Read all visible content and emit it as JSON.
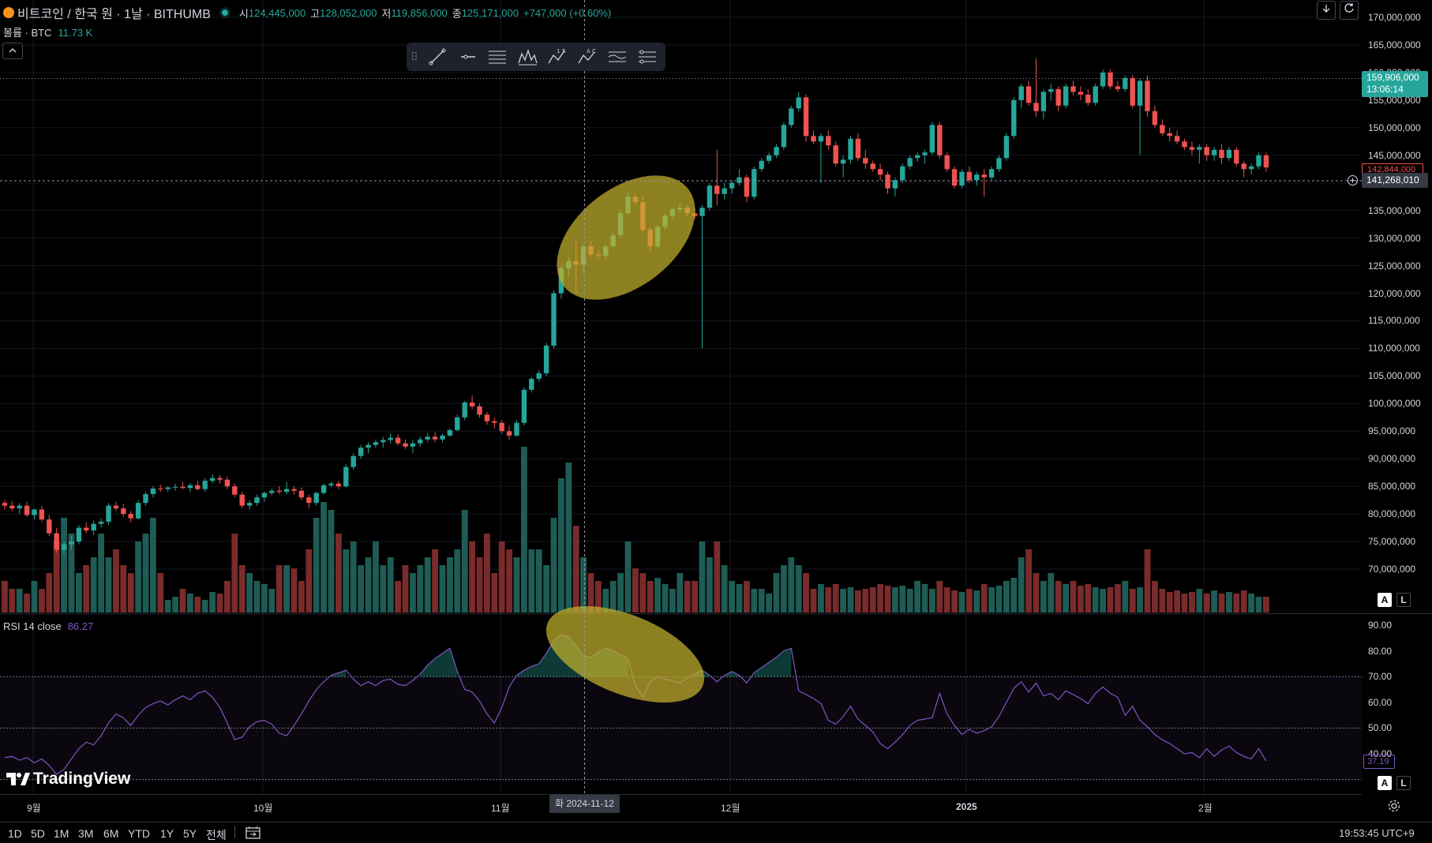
{
  "header": {
    "symbol": "비트코인 / 한국 원 · 1날 · BITHUMB",
    "open_label": "시",
    "open": "124,445,000",
    "high_label": "고",
    "high": "128,052,000",
    "low_label": "저",
    "low": "119,856,000",
    "close_label": "종",
    "close": "125,171,000",
    "change": "+747,000 (+0.60%)"
  },
  "volume_legend": {
    "label": "볼륨 · BTC",
    "value": "11.73 K"
  },
  "rsi_legend": {
    "label": "RSI 14 close",
    "value": "86.27"
  },
  "price_axis": {
    "ticks": [
      "170,000,000",
      "165,000,000",
      "160,000,000",
      "155,000,000",
      "150,000,000",
      "145,000,000",
      "140,000,000",
      "135,000,000",
      "130,000,000",
      "125,000,000",
      "120,000,000",
      "115,000,000",
      "110,000,000",
      "105,000,000",
      "100,000,000",
      "95,000,000",
      "90,000,000",
      "85,000,000",
      "80,000,000",
      "75,000,000",
      "70,000,000"
    ],
    "last_price": "159,906,000",
    "countdown": "13:06:14",
    "prev_close": "142,844,000",
    "crosshair_price": "141,268,010"
  },
  "rsi_axis": {
    "ticks": [
      "90.00",
      "80.00",
      "70.00",
      "60.00",
      "50.00",
      "40.00"
    ],
    "current": "37.19"
  },
  "x_axis": {
    "labels": [
      {
        "text": "9월",
        "bold": false
      },
      {
        "text": "10월",
        "bold": false
      },
      {
        "text": "11월",
        "bold": false
      },
      {
        "text": "12월",
        "bold": false
      },
      {
        "text": "2025",
        "bold": true
      },
      {
        "text": "2월",
        "bold": false
      }
    ],
    "crosshair_date": "화 2024-11-12"
  },
  "scale_buttons": {
    "auto": "A",
    "log": "L"
  },
  "branding": "TradingView",
  "bottom_bar": {
    "ranges": [
      "1D",
      "5D",
      "1M",
      "3M",
      "6M",
      "YTD",
      "1Y",
      "5Y",
      "전체"
    ],
    "time": "19:53:45 UTC+9"
  },
  "toolbar": {
    "tools": [
      "trend-line-icon",
      "horizontal-ray-icon",
      "fib-retracement-icon",
      "elliott-wave-icon",
      "abcd-pattern-icon",
      "xabcd-pattern-icon",
      "parallel-channel-icon",
      "settings-lines-icon"
    ]
  },
  "colors": {
    "up": "#26a69a",
    "down": "#ef5350",
    "rsi": "#7e57c2",
    "highlight": "#c4b12d"
  },
  "chart_data": {
    "type": "candlestick",
    "timeframe": "1D",
    "ylim": [
      67000000,
      172000000
    ],
    "y_scale": "log",
    "candles": [
      [
        82.0,
        82.5,
        80.8,
        81.5
      ],
      [
        81.5,
        82.3,
        80.5,
        81.0
      ],
      [
        81.0,
        82.0,
        80.0,
        81.5
      ],
      [
        81.5,
        82.2,
        79.5,
        79.8
      ],
      [
        79.8,
        81.0,
        79.0,
        80.8
      ],
      [
        80.8,
        81.5,
        78.5,
        79.0
      ],
      [
        79.0,
        79.8,
        76.0,
        76.5
      ],
      [
        76.5,
        77.5,
        73.0,
        73.5
      ],
      [
        73.5,
        75.0,
        72.8,
        74.5
      ],
      [
        74.5,
        76.0,
        73.5,
        75.0
      ],
      [
        75.0,
        78.0,
        74.5,
        77.5
      ],
      [
        77.5,
        78.5,
        76.5,
        77.0
      ],
      [
        77.0,
        78.8,
        76.2,
        78.2
      ],
      [
        78.2,
        79.2,
        77.6,
        78.6
      ],
      [
        78.6,
        82.0,
        78.0,
        81.5
      ],
      [
        81.5,
        82.2,
        80.5,
        81.0
      ],
      [
        81.0,
        81.8,
        79.5,
        80.0
      ],
      [
        80.0,
        80.5,
        78.5,
        79.2
      ],
      [
        79.2,
        82.5,
        79.0,
        82.0
      ],
      [
        82.0,
        84.0,
        81.5,
        83.6
      ],
      [
        83.6,
        85.0,
        83.0,
        84.6
      ],
      [
        84.6,
        85.3,
        84.0,
        84.5
      ],
      [
        84.5,
        85.0,
        84.0,
        84.8
      ],
      [
        84.8,
        85.5,
        84.2,
        84.9
      ],
      [
        84.9,
        85.8,
        84.5,
        84.7
      ],
      [
        84.7,
        85.6,
        84.0,
        85.2
      ],
      [
        85.2,
        86.0,
        84.3,
        84.5
      ],
      [
        84.5,
        86.5,
        84.0,
        86.0
      ],
      [
        86.0,
        87.2,
        85.5,
        86.5
      ],
      [
        86.5,
        87.0,
        85.5,
        86.2
      ],
      [
        86.2,
        86.8,
        84.5,
        85.0
      ],
      [
        85.0,
        85.5,
        83.0,
        83.5
      ],
      [
        83.5,
        84.0,
        81.0,
        81.5
      ],
      [
        81.5,
        82.5,
        80.8,
        82.0
      ],
      [
        82.0,
        83.5,
        81.5,
        83.0
      ],
      [
        83.0,
        84.0,
        82.2,
        83.8
      ],
      [
        83.8,
        84.6,
        83.4,
        84.2
      ],
      [
        84.2,
        85.0,
        83.6,
        84.0
      ],
      [
        84.0,
        85.8,
        83.5,
        84.5
      ],
      [
        84.5,
        85.0,
        83.5,
        84.2
      ],
      [
        84.2,
        84.8,
        82.5,
        83.0
      ],
      [
        83.0,
        83.5,
        81.0,
        82.0
      ],
      [
        82.0,
        84.0,
        81.5,
        83.8
      ],
      [
        83.8,
        85.5,
        83.5,
        85.2
      ],
      [
        85.2,
        85.8,
        84.8,
        85.5
      ],
      [
        85.5,
        86.0,
        84.5,
        85.0
      ],
      [
        85.0,
        89.0,
        84.8,
        88.5
      ],
      [
        88.5,
        91.0,
        88.0,
        90.5
      ],
      [
        90.5,
        92.5,
        90.0,
        92.0
      ],
      [
        92.0,
        93.0,
        91.0,
        92.5
      ],
      [
        92.5,
        93.5,
        92.0,
        93.0
      ],
      [
        93.0,
        94.0,
        92.0,
        93.4
      ],
      [
        93.4,
        94.6,
        92.8,
        93.8
      ],
      [
        93.8,
        94.4,
        92.4,
        92.8
      ],
      [
        92.8,
        93.5,
        91.8,
        92.2
      ],
      [
        92.2,
        93.4,
        91.0,
        92.8
      ],
      [
        92.8,
        94.0,
        92.2,
        93.5
      ],
      [
        93.5,
        94.6,
        93.0,
        94.0
      ],
      [
        94.0,
        94.8,
        93.0,
        93.5
      ],
      [
        93.5,
        94.5,
        93.0,
        94.2
      ],
      [
        94.2,
        95.5,
        94.0,
        95.2
      ],
      [
        95.2,
        98.0,
        95.0,
        97.5
      ],
      [
        97.5,
        100.5,
        97.0,
        100.2
      ],
      [
        100.2,
        101.5,
        99.0,
        99.5
      ],
      [
        99.5,
        100.0,
        97.5,
        98.0
      ],
      [
        98.0,
        98.5,
        96.2,
        96.8
      ],
      [
        96.8,
        97.5,
        95.5,
        96.5
      ],
      [
        96.5,
        97.0,
        94.5,
        95.0
      ],
      [
        95.0,
        96.0,
        93.5,
        94.2
      ],
      [
        94.2,
        97.0,
        94.0,
        96.5
      ],
      [
        96.5,
        103.0,
        96.0,
        102.5
      ],
      [
        102.5,
        104.8,
        102.0,
        104.5
      ],
      [
        104.5,
        106.0,
        104.0,
        105.5
      ],
      [
        105.5,
        111.0,
        105.0,
        110.5
      ],
      [
        110.5,
        120.5,
        110.0,
        120.0
      ],
      [
        120.0,
        125.0,
        119.0,
        124.5
      ],
      [
        124.5,
        126.5,
        123.0,
        125.8
      ],
      [
        125.8,
        129.5,
        119.9,
        125.2
      ],
      [
        125.2,
        129.0,
        123.5,
        128.5
      ],
      [
        128.5,
        129.5,
        126.5,
        127.0
      ],
      [
        127.0,
        127.8,
        126.0,
        126.8
      ],
      [
        126.8,
        129.0,
        126.2,
        128.5
      ],
      [
        128.5,
        131.0,
        128.0,
        130.5
      ],
      [
        130.5,
        135.0,
        130.0,
        134.5
      ],
      [
        134.5,
        138.5,
        134.0,
        137.5
      ],
      [
        137.5,
        138.0,
        136.0,
        136.5
      ],
      [
        136.5,
        137.5,
        131.0,
        131.5
      ],
      [
        131.5,
        132.0,
        127.5,
        128.5
      ],
      [
        128.5,
        132.5,
        128.0,
        132.0
      ],
      [
        132.0,
        134.5,
        131.5,
        134.0
      ],
      [
        134.0,
        135.5,
        133.5,
        135.2
      ],
      [
        135.2,
        136.5,
        134.5,
        135.5
      ],
      [
        135.5,
        136.0,
        134.0,
        134.5
      ],
      [
        134.5,
        135.5,
        133.5,
        134.0
      ],
      [
        134.0,
        136.0,
        110.0,
        135.5
      ],
      [
        135.5,
        140.0,
        135.0,
        139.5
      ],
      [
        139.5,
        146.0,
        136.0,
        138.0
      ],
      [
        138.0,
        140.0,
        137.0,
        139.0
      ],
      [
        139.0,
        140.5,
        138.0,
        140.0
      ],
      [
        140.0,
        142.5,
        139.5,
        141.0
      ],
      [
        141.0,
        141.5,
        136.5,
        137.5
      ],
      [
        137.5,
        143.0,
        137.0,
        142.5
      ],
      [
        142.5,
        144.5,
        142.0,
        144.0
      ],
      [
        144.0,
        145.5,
        143.5,
        145.0
      ],
      [
        145.0,
        147.0,
        144.5,
        146.5
      ],
      [
        146.5,
        151.0,
        146.0,
        150.5
      ],
      [
        150.5,
        154.0,
        150.0,
        153.5
      ],
      [
        153.5,
        156.5,
        153.0,
        155.5
      ],
      [
        155.5,
        156.0,
        147.5,
        148.5
      ],
      [
        148.5,
        149.5,
        147.0,
        147.5
      ],
      [
        147.5,
        149.0,
        140.0,
        148.5
      ],
      [
        148.5,
        149.5,
        146.0,
        146.8
      ],
      [
        146.8,
        147.5,
        143.0,
        143.5
      ],
      [
        143.5,
        145.0,
        141.0,
        144.2
      ],
      [
        144.2,
        148.5,
        143.5,
        148.0
      ],
      [
        148.0,
        149.0,
        144.0,
        144.5
      ],
      [
        144.5,
        146.0,
        142.5,
        143.5
      ],
      [
        143.5,
        144.0,
        142.0,
        142.5
      ],
      [
        142.5,
        143.5,
        140.5,
        141.5
      ],
      [
        141.5,
        142.0,
        138.0,
        139.0
      ],
      [
        139.0,
        141.0,
        137.5,
        140.5
      ],
      [
        140.5,
        143.5,
        140.0,
        143.0
      ],
      [
        143.0,
        145.0,
        142.5,
        144.5
      ],
      [
        144.5,
        145.5,
        143.8,
        145.0
      ],
      [
        145.0,
        146.0,
        143.5,
        145.5
      ],
      [
        145.5,
        151.0,
        145.0,
        150.5
      ],
      [
        150.5,
        151.0,
        144.5,
        145.0
      ],
      [
        145.0,
        145.5,
        142.0,
        142.5
      ],
      [
        142.5,
        143.0,
        139.0,
        139.5
      ],
      [
        139.5,
        142.5,
        139.0,
        142.0
      ],
      [
        142.0,
        143.0,
        140.0,
        140.5
      ],
      [
        140.5,
        142.0,
        139.5,
        141.5
      ],
      [
        141.5,
        142.5,
        137.5,
        141.0
      ],
      [
        141.0,
        143.0,
        140.5,
        142.5
      ],
      [
        142.5,
        145.0,
        142.0,
        144.5
      ],
      [
        144.5,
        149.0,
        144.0,
        148.5
      ],
      [
        148.5,
        155.5,
        148.0,
        155.0
      ],
      [
        155.0,
        158.0,
        153.5,
        157.5
      ],
      [
        157.5,
        158.5,
        154.0,
        154.5
      ],
      [
        154.5,
        162.5,
        152.0,
        153.0
      ],
      [
        153.0,
        157.0,
        151.5,
        156.5
      ],
      [
        156.5,
        158.0,
        155.0,
        157.0
      ],
      [
        157.0,
        157.5,
        153.0,
        154.0
      ],
      [
        154.0,
        158.0,
        153.5,
        157.5
      ],
      [
        157.5,
        158.5,
        156.0,
        156.5
      ],
      [
        156.5,
        157.5,
        155.0,
        156.0
      ],
      [
        156.0,
        157.0,
        154.0,
        154.5
      ],
      [
        154.5,
        158.0,
        154.0,
        157.5
      ],
      [
        157.5,
        160.5,
        157.0,
        160.0
      ],
      [
        160.0,
        160.5,
        157.0,
        157.5
      ],
      [
        157.5,
        158.5,
        156.5,
        157.0
      ],
      [
        157.0,
        159.5,
        156.5,
        159.0
      ],
      [
        159.0,
        159.5,
        153.5,
        154.0
      ],
      [
        154.0,
        159.0,
        145.0,
        158.5
      ],
      [
        158.5,
        159.5,
        152.0,
        153.0
      ],
      [
        153.0,
        154.0,
        150.0,
        150.5
      ],
      [
        150.5,
        151.5,
        148.5,
        149.0
      ],
      [
        149.0,
        150.0,
        147.5,
        148.5
      ],
      [
        148.5,
        149.5,
        147.0,
        147.5
      ],
      [
        147.5,
        148.0,
        146.0,
        146.5
      ],
      [
        146.5,
        147.5,
        145.0,
        146.0
      ],
      [
        146.0,
        147.0,
        143.5,
        146.5
      ],
      [
        146.5,
        147.0,
        144.0,
        145.0
      ],
      [
        145.0,
        146.5,
        144.0,
        146.0
      ],
      [
        146.0,
        147.0,
        143.5,
        144.5
      ],
      [
        144.5,
        146.5,
        144.0,
        146.0
      ],
      [
        146.0,
        146.5,
        143.0,
        143.5
      ],
      [
        143.5,
        144.0,
        141.0,
        142.5
      ],
      [
        142.5,
        143.5,
        141.5,
        143.0
      ],
      [
        143.0,
        145.5,
        142.5,
        145.0
      ],
      [
        145.0,
        145.5,
        142.0,
        142.8
      ]
    ],
    "volume": [
      2.0,
      1.5,
      1.5,
      1.2,
      2.0,
      1.5,
      2.5,
      4.5,
      6.0,
      5.0,
      2.5,
      3.0,
      3.5,
      5.0,
      3.5,
      4.0,
      3.0,
      2.5,
      4.5,
      5.0,
      6.0,
      2.5,
      0.8,
      1.0,
      1.5,
      1.2,
      1.0,
      0.8,
      1.3,
      1.2,
      2.0,
      5.0,
      3.0,
      2.5,
      2.0,
      1.8,
      1.5,
      3.0,
      3.0,
      2.8,
      2.0,
      4.0,
      6.0,
      7.0,
      6.5,
      5.0,
      4.0,
      4.5,
      3.0,
      3.5,
      4.5,
      3.0,
      3.5,
      2.0,
      3.0,
      2.5,
      3.0,
      3.5,
      4.0,
      3.0,
      3.5,
      4.0,
      6.5,
      4.5,
      3.5,
      5.0,
      2.5,
      4.5,
      4.0,
      3.5,
      10.5,
      4.0,
      4.0,
      3.0,
      6.0,
      8.5,
      9.5,
      5.5,
      3.5,
      2.5,
      2.0,
      1.5,
      2.0,
      2.5,
      4.5,
      2.8,
      2.5,
      2.0,
      2.2,
      1.8,
      1.5,
      2.5,
      2.0,
      2.0,
      4.5,
      3.5,
      4.5,
      3.0,
      2.0,
      1.8,
      2.0,
      1.5,
      1.5,
      1.2,
      2.5,
      3.0,
      3.5,
      3.0,
      2.5,
      1.5,
      1.8,
      1.6,
      1.8,
      1.5,
      1.6,
      1.4,
      1.5,
      1.6,
      1.8,
      1.7,
      1.6,
      1.7,
      1.5,
      2.0,
      1.8,
      1.5,
      2.0,
      1.6,
      1.4,
      1.3,
      1.5,
      1.4,
      1.8,
      1.6,
      1.7,
      2.0,
      2.2,
      3.5,
      4.0,
      2.5,
      2.0,
      2.5,
      2.0,
      1.8,
      2.0,
      1.7,
      1.8,
      1.6,
      1.5,
      1.6,
      1.8,
      2.0,
      1.5,
      1.6,
      4.0,
      2.0,
      1.5,
      1.3,
      1.4,
      1.2,
      1.3,
      1.5,
      1.2,
      1.4,
      1.2,
      1.3,
      1.2,
      1.4,
      1.2,
      1.0,
      1.0
    ],
    "rsi": [
      38.5,
      39.0,
      37.5,
      38.5,
      36.5,
      38.0,
      35.5,
      32.0,
      34.0,
      38.0,
      42.0,
      44.5,
      43.5,
      47.0,
      52.0,
      55.5,
      54.0,
      51.0,
      55.0,
      58.0,
      59.5,
      60.5,
      59.0,
      61.0,
      62.5,
      61.0,
      63.5,
      64.5,
      62.0,
      58.0,
      52.0,
      45.5,
      46.5,
      50.5,
      52.5,
      53.0,
      51.5,
      48.0,
      47.0,
      51.0,
      55.5,
      60.5,
      65.0,
      68.0,
      70.5,
      71.5,
      72.5,
      69.0,
      66.5,
      68.0,
      66.5,
      68.5,
      69.0,
      67.0,
      66.5,
      68.5,
      71.0,
      74.5,
      77.0,
      79.0,
      81.0,
      72.0,
      65.0,
      64.0,
      60.5,
      55.5,
      52.0,
      58.0,
      66.0,
      70.5,
      72.5,
      74.0,
      75.0,
      79.0,
      84.0,
      86.27,
      85.5,
      82.0,
      78.0,
      77.5,
      79.5,
      81.0,
      80.0,
      78.5,
      77.0,
      66.5,
      62.0,
      68.0,
      70.0,
      69.0,
      68.5,
      67.5,
      69.5,
      71.0,
      72.5,
      70.5,
      68.0,
      70.5,
      72.0,
      70.5,
      67.5,
      71.5,
      73.5,
      75.5,
      77.5,
      80.0,
      81.0,
      64.5,
      63.0,
      61.5,
      59.5,
      53.0,
      51.5,
      54.5,
      58.5,
      53.5,
      51.0,
      48.5,
      44.0,
      42.0,
      44.5,
      47.5,
      51.0,
      53.0,
      53.5,
      54.0,
      63.5,
      55.5,
      51.0,
      47.5,
      49.5,
      48.0,
      49.0,
      50.5,
      54.5,
      60.0,
      65.5,
      68.0,
      64.0,
      67.5,
      62.5,
      63.5,
      61.0,
      64.5,
      63.0,
      61.5,
      59.5,
      63.5,
      66.0,
      63.5,
      62.0,
      55.0,
      58.5,
      53.0,
      50.5,
      47.5,
      45.5,
      44.0,
      42.0,
      40.0,
      40.5,
      38.5,
      42.0,
      39.0,
      41.5,
      43.0,
      40.5,
      39.0,
      38.0,
      42.0,
      37.19
    ],
    "rsi_levels": [
      70,
      50,
      30
    ],
    "rsi_ylim": [
      30,
      92
    ]
  }
}
